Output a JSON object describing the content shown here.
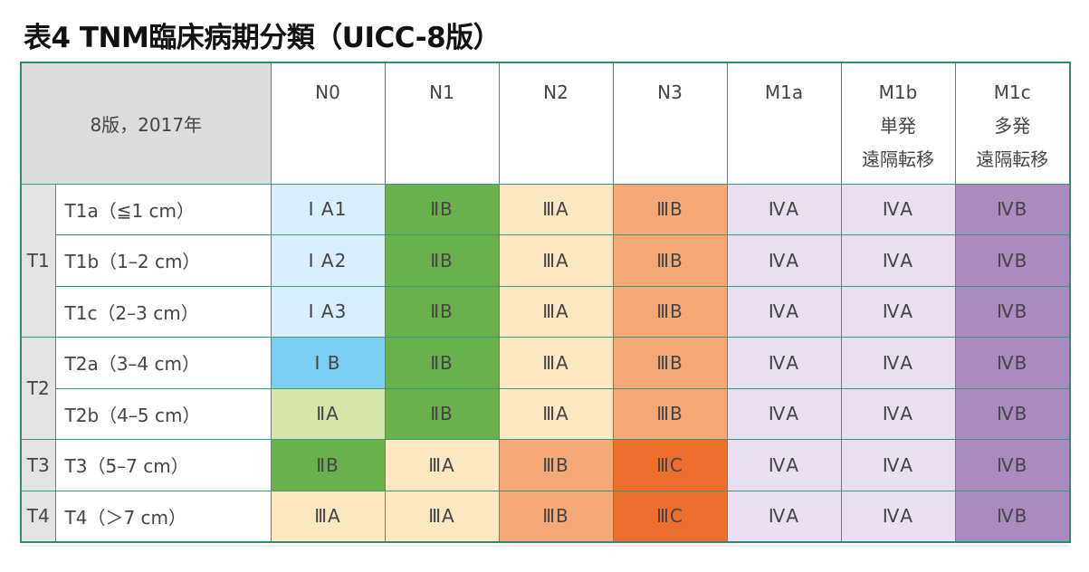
{
  "title": "表4 TNM臨床病期分類（UICC-8版）",
  "corner_label": "8版，2017年",
  "columns": [
    {
      "lines": [
        "N0"
      ]
    },
    {
      "lines": [
        "N1"
      ]
    },
    {
      "lines": [
        "N2"
      ]
    },
    {
      "lines": [
        "N3"
      ]
    },
    {
      "lines": [
        "M1a"
      ]
    },
    {
      "lines": [
        "M1b",
        "単発",
        "遠隔転移"
      ]
    },
    {
      "lines": [
        "M1c",
        "多発",
        "遠隔転移"
      ]
    }
  ],
  "groups": [
    {
      "label": "T1",
      "rows": [
        {
          "label": "T1a（≦1 cm）",
          "cells": [
            {
              "text": "I A1",
              "color": "#d8eefa"
            },
            {
              "text": "ⅡB",
              "color": "#6ab04c"
            },
            {
              "text": "ⅢA",
              "color": "#fde7c0"
            },
            {
              "text": "ⅢB",
              "color": "#f4a876"
            },
            {
              "text": "ⅣA",
              "color": "#e9dff0"
            },
            {
              "text": "ⅣA",
              "color": "#e9dff0"
            },
            {
              "text": "ⅣB",
              "color": "#a98bc0"
            }
          ]
        },
        {
          "label": "T1b（1–2 cm）",
          "cells": [
            {
              "text": "I A2",
              "color": "#d8eefa"
            },
            {
              "text": "ⅡB",
              "color": "#6ab04c"
            },
            {
              "text": "ⅢA",
              "color": "#fde7c0"
            },
            {
              "text": "ⅢB",
              "color": "#f4a876"
            },
            {
              "text": "ⅣA",
              "color": "#e9dff0"
            },
            {
              "text": "ⅣA",
              "color": "#e9dff0"
            },
            {
              "text": "ⅣB",
              "color": "#a98bc0"
            }
          ]
        },
        {
          "label": "T1c（2–3 cm）",
          "cells": [
            {
              "text": "I A3",
              "color": "#d8eefa"
            },
            {
              "text": "ⅡB",
              "color": "#6ab04c"
            },
            {
              "text": "ⅢA",
              "color": "#fde7c0"
            },
            {
              "text": "ⅢB",
              "color": "#f4a876"
            },
            {
              "text": "ⅣA",
              "color": "#e9dff0"
            },
            {
              "text": "ⅣA",
              "color": "#e9dff0"
            },
            {
              "text": "ⅣB",
              "color": "#a98bc0"
            }
          ]
        }
      ]
    },
    {
      "label": "T2",
      "rows": [
        {
          "label": "T2a（3–4 cm）",
          "cells": [
            {
              "text": "I B",
              "color": "#7ccdf2"
            },
            {
              "text": "ⅡB",
              "color": "#6ab04c"
            },
            {
              "text": "ⅢA",
              "color": "#fde7c0"
            },
            {
              "text": "ⅢB",
              "color": "#f4a876"
            },
            {
              "text": "ⅣA",
              "color": "#e9dff0"
            },
            {
              "text": "ⅣA",
              "color": "#e9dff0"
            },
            {
              "text": "ⅣB",
              "color": "#a98bc0"
            }
          ]
        },
        {
          "label": "T2b（4–5 cm）",
          "cells": [
            {
              "text": "ⅡA",
              "color": "#d6e6ab"
            },
            {
              "text": "ⅡB",
              "color": "#6ab04c"
            },
            {
              "text": "ⅢA",
              "color": "#fde7c0"
            },
            {
              "text": "ⅢB",
              "color": "#f4a876"
            },
            {
              "text": "ⅣA",
              "color": "#e9dff0"
            },
            {
              "text": "ⅣA",
              "color": "#e9dff0"
            },
            {
              "text": "ⅣB",
              "color": "#a98bc0"
            }
          ]
        }
      ]
    },
    {
      "label": "T3",
      "rows": [
        {
          "label": "T3（5–7 cm）",
          "cells": [
            {
              "text": "ⅡB",
              "color": "#6ab04c"
            },
            {
              "text": "ⅢA",
              "color": "#fde7c0"
            },
            {
              "text": "ⅢB",
              "color": "#f4a876"
            },
            {
              "text": "ⅢC",
              "color": "#ec6f2d"
            },
            {
              "text": "ⅣA",
              "color": "#e9dff0"
            },
            {
              "text": "ⅣA",
              "color": "#e9dff0"
            },
            {
              "text": "ⅣB",
              "color": "#a98bc0"
            }
          ]
        }
      ]
    },
    {
      "label": "T4",
      "rows": [
        {
          "label": "T4（＞7 cm）",
          "cells": [
            {
              "text": "ⅢA",
              "color": "#fde7c0"
            },
            {
              "text": "ⅢA",
              "color": "#fde7c0"
            },
            {
              "text": "ⅢB",
              "color": "#f4a876"
            },
            {
              "text": "ⅢC",
              "color": "#ec6f2d"
            },
            {
              "text": "ⅣA",
              "color": "#e9dff0"
            },
            {
              "text": "ⅣA",
              "color": "#e9dff0"
            },
            {
              "text": "ⅣB",
              "color": "#a98bc0"
            }
          ]
        }
      ]
    }
  ]
}
